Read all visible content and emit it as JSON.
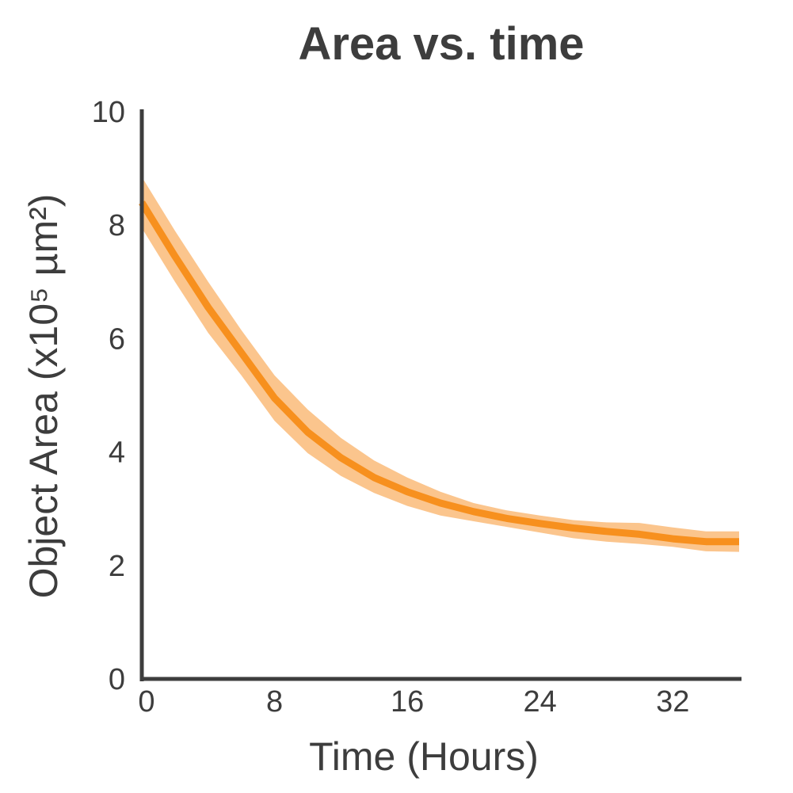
{
  "chart_data": {
    "type": "line",
    "title": "Area vs. time",
    "xlabel": "Time (Hours)",
    "ylabel": "Object Area (x10⁵ µm²)",
    "xlim": [
      0,
      36
    ],
    "ylim": [
      0,
      10
    ],
    "x_ticks": [
      0,
      8,
      16,
      24,
      32
    ],
    "y_ticks": [
      0,
      2,
      4,
      6,
      8,
      10
    ],
    "grid": false,
    "legend": "none",
    "series": [
      {
        "x": [
          0,
          2,
          4,
          6,
          8,
          10,
          12,
          14,
          16,
          18,
          20,
          22,
          24,
          26,
          28,
          30,
          32,
          34,
          36
        ],
        "values": [
          8.4,
          7.45,
          6.55,
          5.75,
          4.95,
          4.35,
          3.9,
          3.55,
          3.3,
          3.1,
          2.95,
          2.83,
          2.74,
          2.66,
          2.6,
          2.55,
          2.47,
          2.42,
          2.42
        ],
        "upper": [
          8.85,
          7.9,
          7.0,
          6.15,
          5.35,
          4.75,
          4.25,
          3.85,
          3.55,
          3.3,
          3.1,
          2.97,
          2.88,
          2.8,
          2.76,
          2.75,
          2.67,
          2.6,
          2.6
        ],
        "lower": [
          7.95,
          7.0,
          6.1,
          5.35,
          4.55,
          3.98,
          3.58,
          3.28,
          3.05,
          2.88,
          2.78,
          2.68,
          2.58,
          2.48,
          2.42,
          2.38,
          2.33,
          2.25,
          2.24
        ],
        "color": "#f7901e",
        "band_color": "#fbc58d"
      }
    ]
  },
  "colors": {
    "text": "#3d3d3d",
    "axis": "#3d3d3d"
  }
}
